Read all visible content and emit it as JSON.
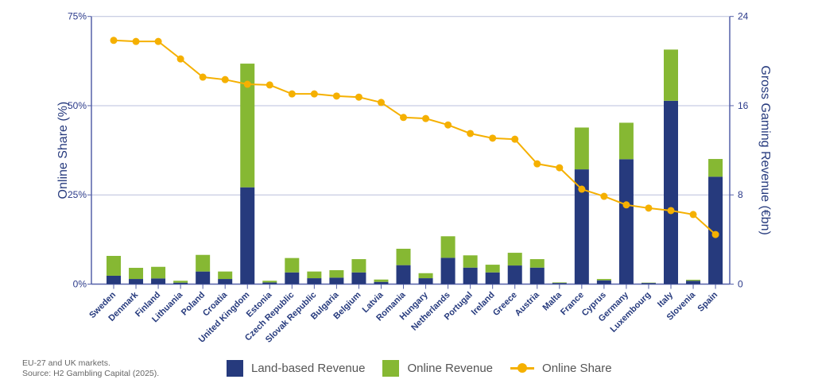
{
  "chart_data": {
    "type": "bar",
    "stacked": true,
    "categories": [
      "Sweden",
      "Denmark",
      "Finland",
      "Lithuania",
      "Poland",
      "Croatia",
      "United Kingdom",
      "Estonia",
      "Czech Republic",
      "Slovak Republic",
      "Bulgaria",
      "Belgium",
      "Latvia",
      "Romania",
      "Hungary",
      "Netherlands",
      "Portugal",
      "Ireland",
      "Greece",
      "Austria",
      "Malta",
      "France",
      "Cyprus",
      "Germany",
      "Luxembourg",
      "Italy",
      "Slovenia",
      "Spain"
    ],
    "series": [
      {
        "name": "Land-based Revenue",
        "axis": "right",
        "type": "bar",
        "color": "#263a7d",
        "values": [
          0.75,
          0.46,
          0.51,
          0.13,
          1.13,
          0.46,
          8.68,
          0.15,
          1.05,
          0.53,
          0.58,
          1.05,
          0.2,
          1.7,
          0.53,
          2.36,
          1.48,
          1.05,
          1.67,
          1.48,
          0.1,
          10.29,
          0.34,
          11.2,
          0.1,
          16.44,
          0.3,
          9.63
        ]
      },
      {
        "name": "Online Revenue",
        "axis": "right",
        "type": "bar",
        "color": "#86b833",
        "values": [
          1.78,
          1.0,
          1.04,
          0.17,
          1.49,
          0.67,
          11.09,
          0.15,
          1.29,
          0.6,
          0.67,
          1.19,
          0.21,
          1.47,
          0.45,
          1.93,
          1.1,
          0.69,
          1.14,
          0.76,
          0.05,
          3.75,
          0.12,
          3.27,
          0.03,
          4.59,
          0.09,
          1.59
        ]
      },
      {
        "name": "Online Share",
        "axis": "left",
        "type": "line",
        "color": "#f5b000",
        "values": [
          68.3,
          68.0,
          68.0,
          63.1,
          58.0,
          57.3,
          56.0,
          55.8,
          53.3,
          53.3,
          52.7,
          52.4,
          50.9,
          46.7,
          46.4,
          44.6,
          42.2,
          40.9,
          40.6,
          33.7,
          32.6,
          26.6,
          24.6,
          22.2,
          21.3,
          20.6,
          19.5,
          13.9
        ]
      }
    ],
    "ylabel": "Online Share (%)",
    "ylabel_right": "Gross Gaming Revenue (€bn)",
    "ylim": [
      0,
      75
    ],
    "ylim_right": [
      0,
      24
    ],
    "yticks": [
      "0%",
      "25%",
      "50%",
      "75%"
    ],
    "yticks_right": [
      "0",
      "8",
      "16",
      "24"
    ],
    "grid": true,
    "legend": "bottom"
  },
  "footnote": {
    "line1": "EU-27 and UK markets.",
    "line2": "Source: H2 Gambling Capital (2025)."
  },
  "legend": {
    "land": "Land-based Revenue",
    "online": "Online Revenue",
    "share": "Online Share"
  }
}
